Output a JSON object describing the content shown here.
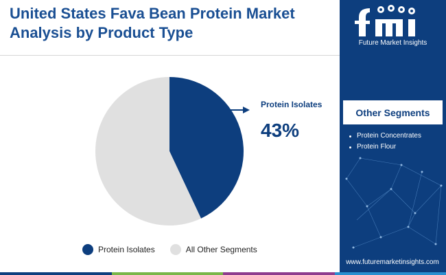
{
  "title": "United States Fava Bean Protein Market Analysis by Product Type",
  "brand": {
    "logo_text": "fmi",
    "name": "Future Market Insights",
    "url": "www.futuremarketinsights.com"
  },
  "other_segments": {
    "title": "Other Segments",
    "items": [
      "Protein Concentrates",
      "Protein Flour"
    ]
  },
  "colors": {
    "title": "#1a4f93",
    "primary": "#0d3e7e",
    "secondary": "#e0e0e0",
    "sidebar": "#0d3e7e",
    "footer_bar": [
      "#0d3e7e",
      "#7ab648",
      "#8e3c8e",
      "#2a8fd0"
    ]
  },
  "icons": [
    "logo-icon",
    "arrow-right-icon",
    "network-lines-icon"
  ],
  "chart_data": {
    "type": "pie",
    "slices": [
      {
        "label": "Protein Isolates",
        "value": 43
      },
      {
        "label": "All Other Segments",
        "value": 57
      }
    ],
    "callout": {
      "label": "Protein Isolates",
      "value_text": "43%"
    },
    "legend": [
      "Protein Isolates",
      "All Other Segments"
    ],
    "legend_position": "bottom"
  }
}
